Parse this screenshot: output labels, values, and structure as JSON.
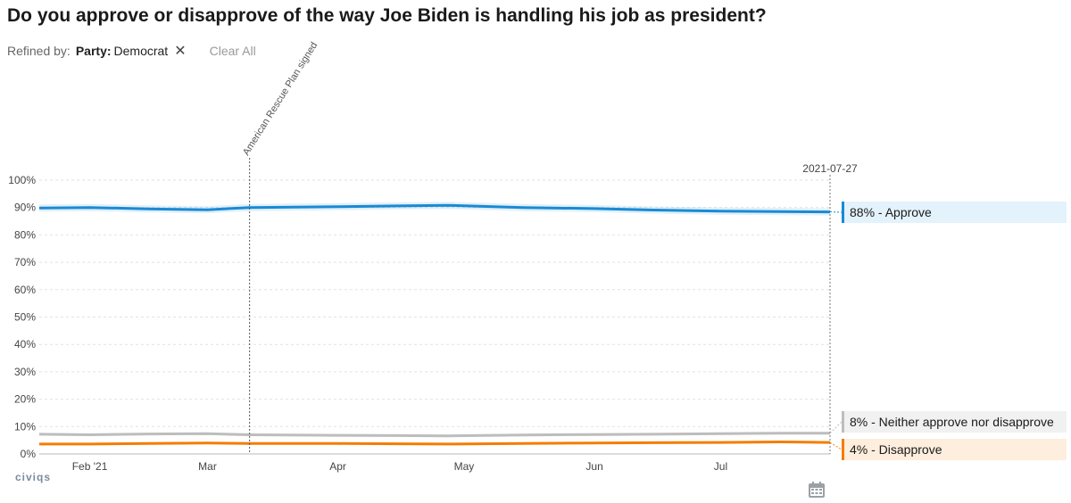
{
  "title": "Do you approve or disapprove of the way Joe Biden is handling his job as president?",
  "filters": {
    "prefix": "Refined by:",
    "chip_key": "Party:",
    "chip_value": "Democrat",
    "clear_label": "Clear All"
  },
  "brand": "civiqs",
  "icons": {
    "close": "close-icon",
    "calendar": "calendar-icon"
  },
  "colors": {
    "approve": "#1a8ad4",
    "neither": "#bdbdbd",
    "disapprove": "#f57c00",
    "approve_bg": "#e3f2fb",
    "neither_bg": "#f1f1f1",
    "disapprove_bg": "#fdeedd"
  },
  "chart_data": {
    "type": "line",
    "title": "Do you approve or disapprove of the way Joe Biden is handling his job as president?",
    "xlabel": "",
    "ylabel": "",
    "ylim": [
      0,
      100
    ],
    "yticks": [
      "0%",
      "10%",
      "20%",
      "30%",
      "40%",
      "50%",
      "60%",
      "70%",
      "80%",
      "90%",
      "100%"
    ],
    "x_domain": [
      "2021-01-20",
      "2021-07-27"
    ],
    "x_ticks": [
      {
        "date": "2021-02-01",
        "label": "Feb '21"
      },
      {
        "date": "2021-03-01",
        "label": "Mar"
      },
      {
        "date": "2021-04-01",
        "label": "Apr"
      },
      {
        "date": "2021-05-01",
        "label": "May"
      },
      {
        "date": "2021-06-01",
        "label": "Jun"
      },
      {
        "date": "2021-07-01",
        "label": "Jul"
      }
    ],
    "x": [
      "2021-01-20",
      "2021-02-01",
      "2021-02-15",
      "2021-03-01",
      "2021-03-11",
      "2021-04-01",
      "2021-04-15",
      "2021-04-27",
      "2021-05-15",
      "2021-06-01",
      "2021-06-15",
      "2021-07-01",
      "2021-07-15",
      "2021-07-27"
    ],
    "series": [
      {
        "name": "Approve",
        "color": "#1a8ad4",
        "values": [
          89.8,
          90.0,
          89.5,
          89.2,
          90.0,
          90.3,
          90.6,
          90.8,
          90.0,
          89.6,
          89.1,
          88.7,
          88.5,
          88.4
        ],
        "band": 1.3,
        "label": "88% - Approve"
      },
      {
        "name": "Neither approve nor disapprove",
        "color": "#bdbdbd",
        "values": [
          7.2,
          7.0,
          7.3,
          7.4,
          7.0,
          6.8,
          6.7,
          6.6,
          6.9,
          7.1,
          7.2,
          7.4,
          7.6,
          7.6
        ],
        "band": 0.5,
        "label": "8% - Neither approve nor disapprove"
      },
      {
        "name": "Disapprove",
        "color": "#f57c00",
        "values": [
          3.6,
          3.6,
          3.8,
          4.0,
          3.8,
          3.8,
          3.7,
          3.6,
          3.8,
          4.0,
          4.1,
          4.2,
          4.4,
          4.2
        ],
        "band": 0.3,
        "label": "4% - Disapprove"
      }
    ],
    "annotations": [
      {
        "date": "2021-03-11",
        "label": "American Rescue Plan signed"
      },
      {
        "date": "2021-07-27",
        "label": "2021-07-27"
      }
    ],
    "grid": true
  }
}
